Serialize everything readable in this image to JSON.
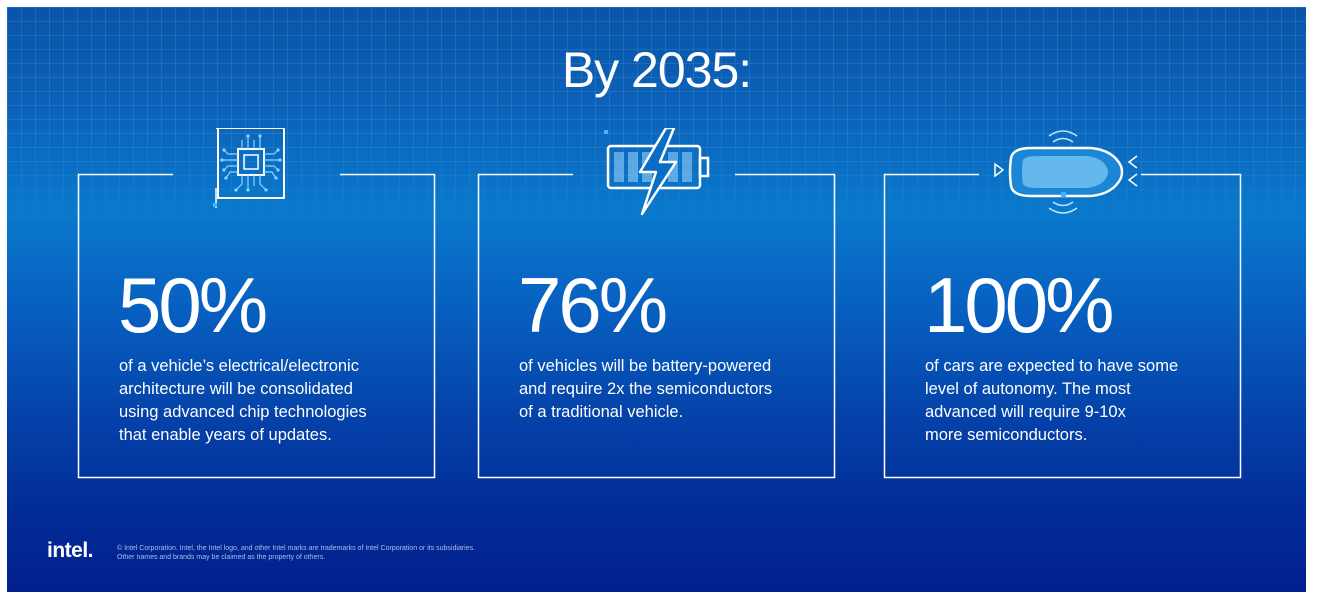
{
  "headline": "By 2035:",
  "cards": [
    {
      "value": "50%",
      "text": "of a vehicle’s electrical/electronic\narchitecture will be consolidated\nusing advanced chip  technologies\nthat enable years of updates.",
      "icon": "chip-icon"
    },
    {
      "value": "76%",
      "text": "of vehicles will be battery-powered\nand require 2x the semiconductors\nof a traditional vehicle.",
      "icon": "battery-charging-icon"
    },
    {
      "value": "100%",
      "text": "of cars are expected to have some\nlevel of autonomy. The most\nadvanced will require 9-10x\nmore semiconductors.",
      "icon": "autonomous-car-icon"
    }
  ],
  "footer": {
    "logo": "intel.",
    "legal": "© Intel Corporation. Intel, the Intel logo, and other Intel marks are trademarks of Intel Corporation or its subsidiaries.\nOther names and brands may be claimed as the property of others."
  },
  "colors": {
    "background_top": "#0a54a8",
    "background_mid": "#0a79cc",
    "background_bottom": "#021f8c",
    "line": "#ffffff",
    "accent": "#3fb6ff"
  }
}
